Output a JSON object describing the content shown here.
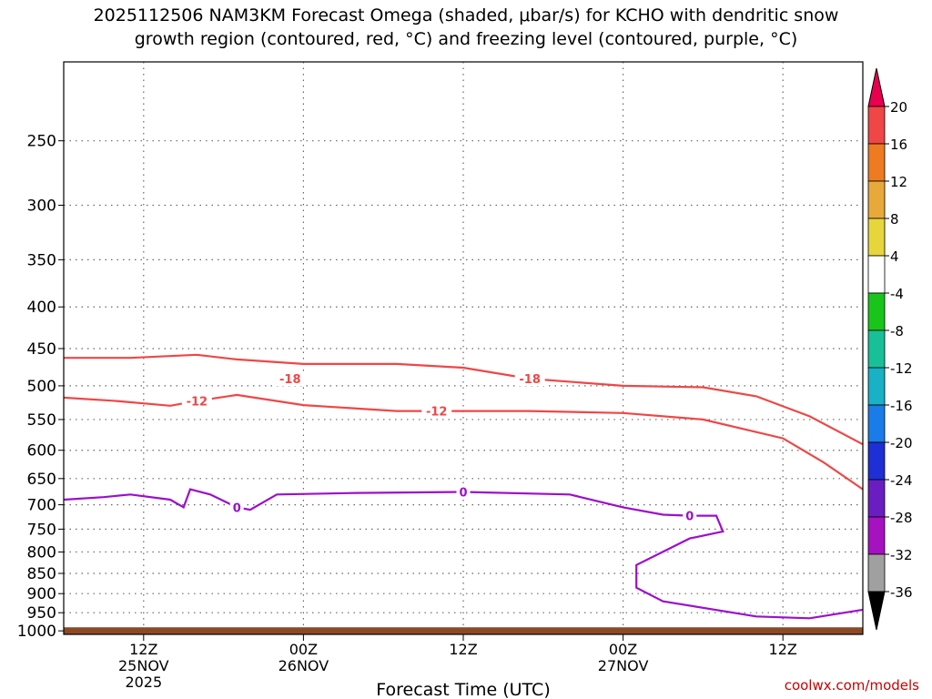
{
  "header": {
    "title_line1": "2025112506 NAM3KM Forecast Omega (shaded, μbar/s) for KCHO with dendritic snow",
    "title_line2": "growth region (contoured, red, °C) and freezing level (contoured, purple, °C)"
  },
  "footer": {
    "credit": "coolwx.com/models"
  },
  "chart_data": {
    "type": "contour",
    "xlabel": "Forecast Time (UTC)",
    "ylabel": "",
    "x_ticks": [
      {
        "hour": 6,
        "lines": [
          "12Z",
          "25NOV",
          "2025"
        ]
      },
      {
        "hour": 18,
        "lines": [
          "00Z",
          "26NOV"
        ]
      },
      {
        "hour": 30,
        "lines": [
          "12Z"
        ]
      },
      {
        "hour": 42,
        "lines": [
          "00Z",
          "27NOV"
        ]
      },
      {
        "hour": 54,
        "lines": [
          "12Z"
        ]
      }
    ],
    "xlim": [
      0,
      60
    ],
    "y_ticks": [
      250,
      300,
      350,
      400,
      450,
      500,
      550,
      600,
      650,
      700,
      750,
      800,
      850,
      900,
      950,
      1000
    ],
    "ylim": [
      1010,
      200
    ],
    "y_scale": "log-pressure",
    "grid": true,
    "colorbar": {
      "labels": [
        "20",
        "16",
        "12",
        "8",
        "4",
        "-4",
        "-8",
        "-12",
        "-16",
        "-20",
        "-24",
        "-28",
        "-32",
        "-36"
      ],
      "colors": [
        "#e8004e",
        "#f04646",
        "#ee7b22",
        "#e8a93a",
        "#e6d63c",
        "#ffffff",
        "#19c51a",
        "#18c098",
        "#18b1c6",
        "#1a7ce8",
        "#1f2fd6",
        "#6a1ec2",
        "#a611c0",
        "#a0a0a0",
        "#000000"
      ]
    },
    "contours": [
      {
        "name": "-18",
        "color": "#f04646",
        "label_at": [
          [
            17,
            490
          ],
          [
            35,
            490
          ]
        ],
        "points": [
          [
            0,
            462
          ],
          [
            5,
            462
          ],
          [
            10,
            458
          ],
          [
            13,
            464
          ],
          [
            18,
            470
          ],
          [
            25,
            470
          ],
          [
            30,
            475
          ],
          [
            35,
            490
          ],
          [
            42,
            500
          ],
          [
            48,
            502
          ],
          [
            52,
            515
          ],
          [
            56,
            545
          ],
          [
            60,
            590
          ]
        ]
      },
      {
        "name": "-12",
        "color": "#f04646",
        "label_at": [
          [
            10,
            522
          ],
          [
            28,
            537
          ]
        ],
        "points": [
          [
            0,
            517
          ],
          [
            4,
            522
          ],
          [
            8,
            529
          ],
          [
            10,
            522
          ],
          [
            13,
            513
          ],
          [
            18,
            528
          ],
          [
            25,
            537
          ],
          [
            30,
            537
          ],
          [
            35,
            537
          ],
          [
            42,
            540
          ],
          [
            48,
            550
          ],
          [
            54,
            580
          ],
          [
            57,
            620
          ],
          [
            60,
            670
          ]
        ]
      },
      {
        "name": "0",
        "color": "#9b10cc",
        "label_at": [
          [
            13,
            705
          ],
          [
            30,
            675
          ],
          [
            47,
            722
          ]
        ],
        "points": [
          [
            0,
            690
          ],
          [
            3,
            685
          ],
          [
            5,
            680
          ],
          [
            8,
            690
          ],
          [
            9,
            705
          ],
          [
            9.5,
            670
          ],
          [
            11,
            680
          ],
          [
            13,
            705
          ],
          [
            14,
            710
          ],
          [
            16,
            680
          ],
          [
            22,
            677
          ],
          [
            30,
            675
          ],
          [
            38,
            680
          ],
          [
            42,
            705
          ],
          [
            45,
            720
          ],
          [
            47,
            722
          ],
          [
            49,
            722
          ],
          [
            49.5,
            755
          ],
          [
            47,
            770
          ],
          [
            43,
            830
          ],
          [
            43,
            885
          ],
          [
            45,
            920
          ],
          [
            52,
            960
          ],
          [
            56,
            965
          ],
          [
            60,
            942
          ]
        ]
      }
    ],
    "ground_level_hpa": 990
  }
}
